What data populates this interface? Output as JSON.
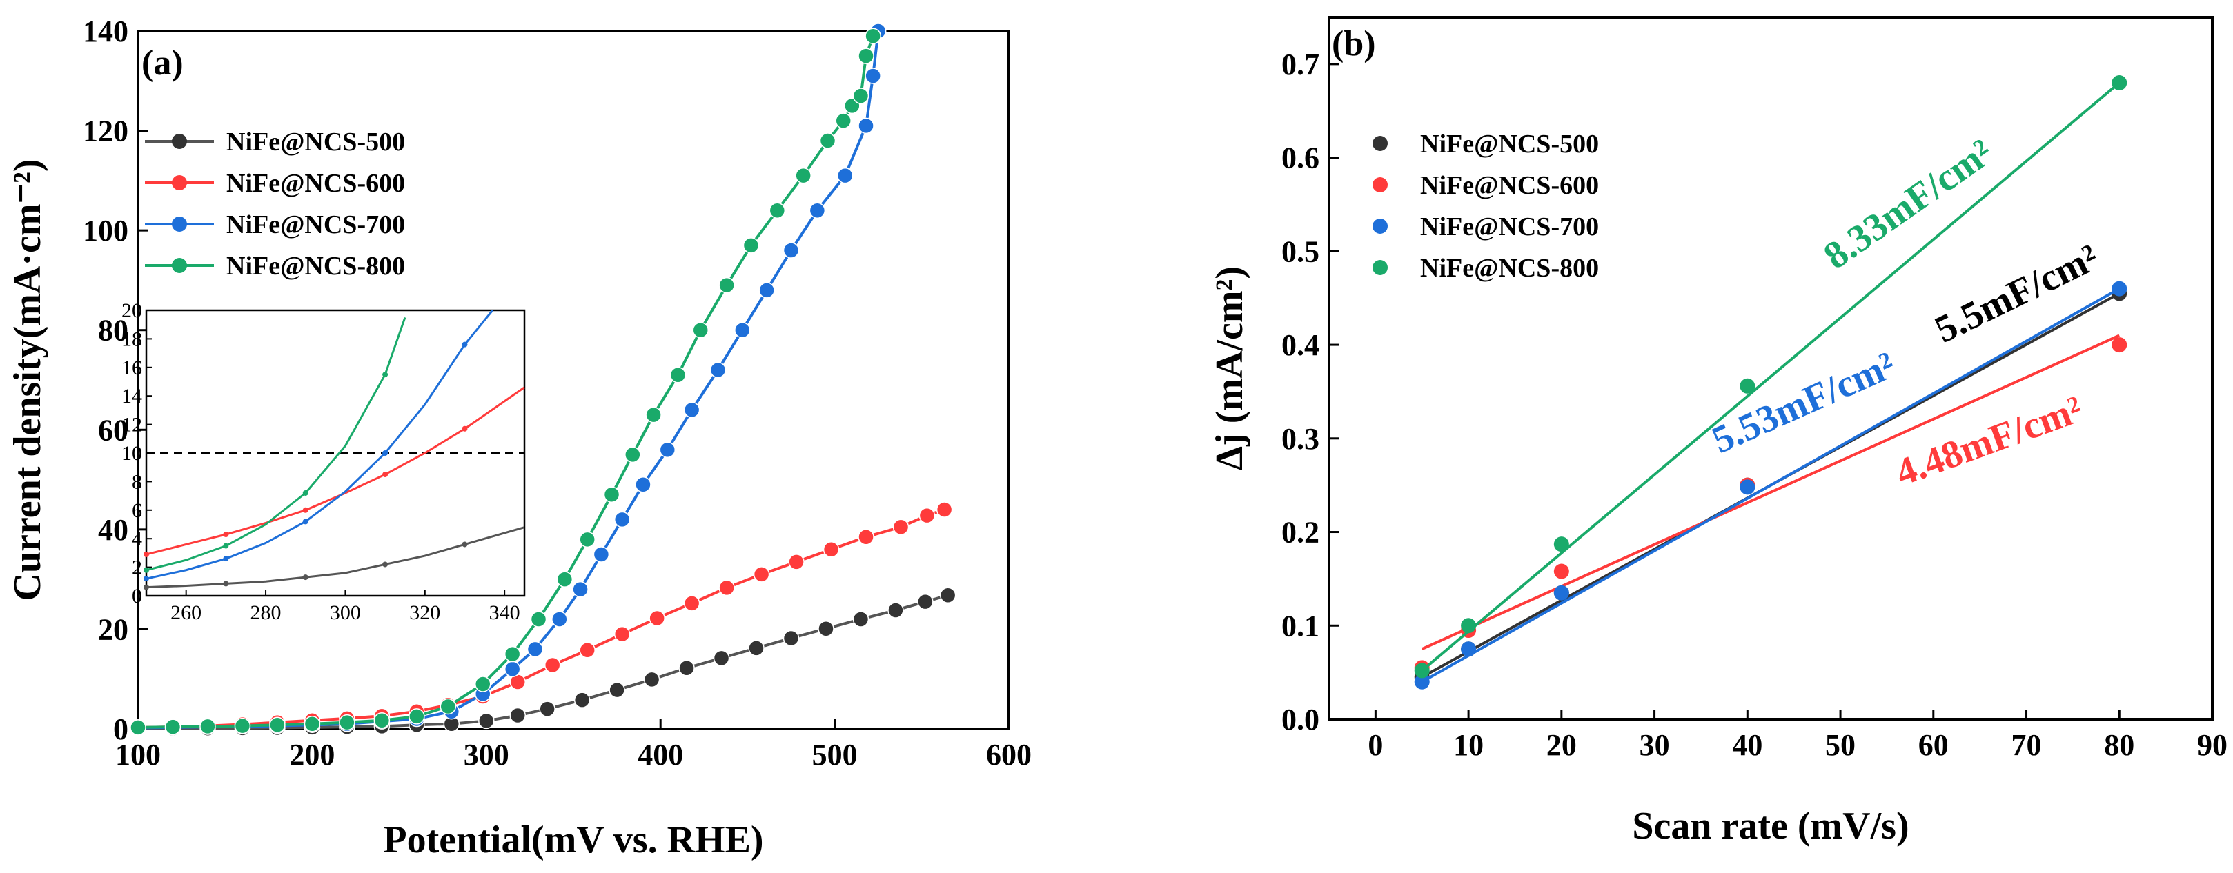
{
  "chart_data": [
    {
      "type": "line",
      "panel_label": "(a)",
      "xlabel": "Potential(mV vs. RHE)",
      "ylabel": "Current density(mA·cm⁻²)",
      "xlim": [
        100,
        600
      ],
      "ylim": [
        0,
        140
      ],
      "xticks": [
        100,
        200,
        300,
        400,
        500,
        600
      ],
      "yticks": [
        0,
        20,
        40,
        60,
        80,
        100,
        120,
        140
      ],
      "legend_position": "top-left",
      "series": [
        {
          "name": "NiFe@NCS-500",
          "color": "#555555",
          "marker_color": "#333333",
          "x": [
            100,
            120,
            140,
            160,
            180,
            200,
            220,
            240,
            260,
            280,
            300,
            318,
            335,
            355,
            375,
            395,
            415,
            435,
            455,
            475,
            495,
            515,
            535,
            552,
            565
          ],
          "y": [
            0.05,
            0.08,
            0.1,
            0.15,
            0.2,
            0.3,
            0.4,
            0.5,
            0.8,
            1.0,
            1.6,
            2.7,
            4.0,
            5.8,
            7.8,
            9.9,
            12.2,
            14.2,
            16.2,
            18.2,
            20.1,
            22.0,
            23.8,
            25.5,
            26.8
          ]
        },
        {
          "name": "NiFe@NCS-600",
          "color": "#ff3b3b",
          "marker_color": "#ff3b3b",
          "x": [
            100,
            120,
            140,
            160,
            180,
            200,
            220,
            240,
            260,
            278,
            298,
            318,
            338,
            358,
            378,
            398,
            418,
            438,
            458,
            478,
            498,
            518,
            538,
            553,
            563
          ],
          "y": [
            0.3,
            0.4,
            0.6,
            0.9,
            1.3,
            1.7,
            2.1,
            2.6,
            3.5,
            4.8,
            6.5,
            9.4,
            12.8,
            15.8,
            19.0,
            22.2,
            25.2,
            28.3,
            31.0,
            33.5,
            36.0,
            38.5,
            40.5,
            42.8,
            44.0
          ]
        },
        {
          "name": "NiFe@NCS-700",
          "color": "#1e6fd9",
          "marker_color": "#1e6fd9",
          "x": [
            100,
            120,
            140,
            160,
            180,
            200,
            220,
            240,
            260,
            280,
            298,
            315,
            328,
            342,
            354,
            366,
            378,
            390,
            404,
            418,
            433,
            447,
            461,
            475,
            490,
            506,
            518,
            522,
            525
          ],
          "y": [
            0.2,
            0.3,
            0.4,
            0.5,
            0.6,
            0.8,
            1.0,
            1.5,
            2.0,
            3.5,
            7.0,
            12.0,
            16.0,
            22.0,
            28.0,
            35.0,
            42.0,
            49.0,
            56.0,
            64.0,
            72.0,
            80.0,
            88.0,
            96.0,
            104.0,
            111.0,
            121.0,
            131.0,
            140.0
          ]
        },
        {
          "name": "NiFe@NCS-800",
          "color": "#1aaa6a",
          "marker_color": "#1aaa6a",
          "x": [
            100,
            120,
            140,
            160,
            180,
            200,
            220,
            240,
            260,
            278,
            298,
            315,
            330,
            345,
            358,
            372,
            384,
            396,
            410,
            423,
            438,
            452,
            467,
            482,
            496,
            505,
            510,
            515,
            518,
            522
          ],
          "y": [
            0.3,
            0.4,
            0.5,
            0.6,
            0.8,
            1.0,
            1.3,
            1.7,
            2.5,
            4.5,
            9.0,
            15.0,
            22.0,
            30.0,
            38.0,
            47.0,
            55.0,
            63.0,
            71.0,
            80.0,
            89.0,
            97.0,
            104.0,
            111.0,
            118.0,
            122.0,
            125.0,
            127.0,
            135.0,
            139.0
          ]
        }
      ],
      "inset": {
        "xlim": [
          250,
          345
        ],
        "ylim": [
          0,
          20
        ],
        "xticks": [
          260,
          280,
          300,
          320,
          340
        ],
        "yticks": [
          0,
          2,
          4,
          6,
          8,
          10,
          12,
          14,
          16,
          18,
          20
        ],
        "reference_line_y": 10,
        "series": [
          {
            "name": "NiFe@NCS-500",
            "x": [
              250,
              260,
              270,
              280,
              290,
              300,
              310,
              320,
              330,
              345
            ],
            "y": [
              0.6,
              0.7,
              0.85,
              1.0,
              1.3,
              1.6,
              2.2,
              2.8,
              3.6,
              4.8
            ]
          },
          {
            "name": "NiFe@NCS-600",
            "x": [
              250,
              260,
              270,
              280,
              290,
              300,
              310,
              320,
              330,
              345
            ],
            "y": [
              2.9,
              3.6,
              4.3,
              5.1,
              6.0,
              7.2,
              8.5,
              10.0,
              11.7,
              14.6
            ]
          },
          {
            "name": "NiFe@NCS-700",
            "x": [
              250,
              260,
              270,
              280,
              290,
              300,
              310,
              320,
              330,
              337
            ],
            "y": [
              1.2,
              1.8,
              2.6,
              3.7,
              5.2,
              7.3,
              10.0,
              13.4,
              17.6,
              20.0
            ]
          },
          {
            "name": "NiFe@NCS-800",
            "x": [
              250,
              260,
              270,
              280,
              290,
              300,
              310,
              315
            ],
            "y": [
              1.8,
              2.5,
              3.5,
              5.0,
              7.2,
              10.5,
              15.5,
              19.5
            ]
          }
        ]
      }
    },
    {
      "type": "scatter",
      "panel_label": "(b)",
      "xlabel": "Scan rate (mV/s)",
      "ylabel": "Δj (mA/cm²)",
      "xlim": [
        -5,
        90
      ],
      "ylim": [
        0,
        0.75
      ],
      "xticks": [
        0,
        10,
        20,
        30,
        40,
        50,
        60,
        70,
        80,
        90
      ],
      "yticks": [
        0.0,
        0.1,
        0.2,
        0.3,
        0.4,
        0.5,
        0.6,
        0.7
      ],
      "ytick_labels": [
        "0.0",
        "0.1",
        "0.2",
        "0.3",
        "0.4",
        "0.5",
        "0.6",
        "0.7"
      ],
      "legend_position": "top-left",
      "series": [
        {
          "name": "NiFe@NCS-500",
          "color": "#333333",
          "x": [
            5,
            10,
            20,
            40,
            80
          ],
          "y": [
            0.045,
            0.075,
            0.135,
            0.25,
            0.455
          ],
          "fit": [
            [
              5,
              0.045
            ],
            [
              80,
              0.455
            ]
          ],
          "label": "5.5mF/cm²"
        },
        {
          "name": "NiFe@NCS-600",
          "color": "#ff3b3b",
          "x": [
            5,
            10,
            20,
            40,
            80
          ],
          "y": [
            0.055,
            0.095,
            0.158,
            0.25,
            0.4
          ],
          "fit": [
            [
              5,
              0.075
            ],
            [
              80,
              0.41
            ]
          ],
          "label": "4.48mF/cm²"
        },
        {
          "name": "NiFe@NCS-700",
          "color": "#1e6fd9",
          "x": [
            5,
            10,
            20,
            40,
            80
          ],
          "y": [
            0.04,
            0.075,
            0.135,
            0.248,
            0.46
          ],
          "fit": [
            [
              5,
              0.04
            ],
            [
              80,
              0.46
            ]
          ],
          "label": "5.53mF/cm²"
        },
        {
          "name": "NiFe@NCS-800",
          "color": "#1aaa6a",
          "x": [
            5,
            10,
            20,
            40,
            80
          ],
          "y": [
            0.052,
            0.1,
            0.187,
            0.356,
            0.68
          ],
          "fit": [
            [
              5,
              0.052
            ],
            [
              80,
              0.68
            ]
          ],
          "label": "8.33mF/cm²"
        }
      ]
    }
  ]
}
